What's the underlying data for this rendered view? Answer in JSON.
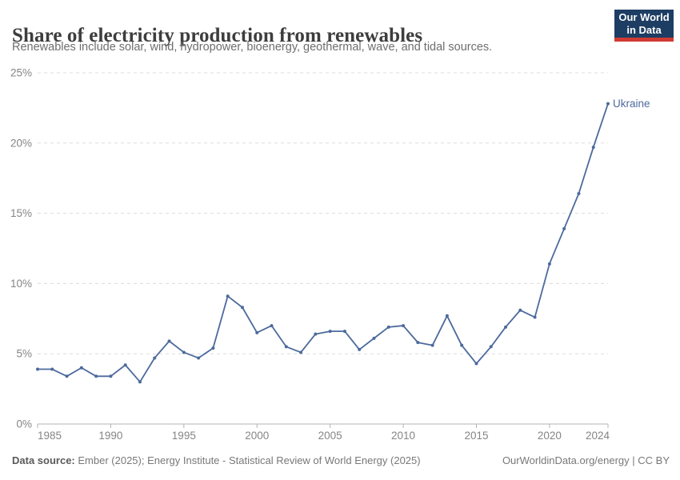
{
  "header": {
    "title": "Share of electricity production from renewables",
    "subtitle": "Renewables include solar, wind, hydropower, bioenergy, geothermal, wave, and tidal sources."
  },
  "logo": {
    "line1": "Our World",
    "line2": "in Data",
    "bg_color": "#1d3d63",
    "accent_color": "#cf3b33"
  },
  "chart_data": {
    "type": "line",
    "title": "Share of electricity production from renewables",
    "xlabel": "",
    "ylabel": "",
    "xlim": [
      1985,
      2024
    ],
    "ylim": [
      0,
      25
    ],
    "grid": "horizontal-dashed",
    "legend_position": "end-of-line-label",
    "x_ticks": [
      1985,
      1990,
      1995,
      2000,
      2005,
      2010,
      2015,
      2020,
      2024
    ],
    "y_ticks": [
      0,
      5,
      10,
      15,
      20,
      25
    ],
    "y_tick_labels": [
      "0%",
      "5%",
      "10%",
      "15%",
      "20%",
      "25%"
    ],
    "series": [
      {
        "name": "Ukraine",
        "color": "#4C6A9C",
        "x": [
          1985,
          1986,
          1987,
          1988,
          1989,
          1990,
          1991,
          1992,
          1993,
          1994,
          1995,
          1996,
          1997,
          1998,
          1999,
          2000,
          2001,
          2002,
          2003,
          2004,
          2005,
          2006,
          2007,
          2008,
          2009,
          2010,
          2011,
          2012,
          2013,
          2014,
          2015,
          2016,
          2017,
          2018,
          2019,
          2020,
          2021,
          2022,
          2023,
          2024
        ],
        "values": [
          3.9,
          3.9,
          3.4,
          4.0,
          3.4,
          3.4,
          4.2,
          3.0,
          4.7,
          5.9,
          5.1,
          4.7,
          5.4,
          9.1,
          8.3,
          6.5,
          7.0,
          5.5,
          5.1,
          6.4,
          6.6,
          6.6,
          5.3,
          6.1,
          6.9,
          7.0,
          5.8,
          5.6,
          7.7,
          5.6,
          4.3,
          5.5,
          6.9,
          8.1,
          7.6,
          11.4,
          13.9,
          16.4,
          19.7,
          22.8
        ]
      }
    ],
    "colors": {
      "line": "#4C6A9C",
      "gridline": "#dcdcdc",
      "axis": "#b3b3b3",
      "tick_label": "#858585"
    }
  },
  "footer": {
    "source_label": "Data source:",
    "source_text": "Ember (2025); Energy Institute - Statistical Review of World Energy (2025)",
    "right_text": "OurWorldinData.org/energy | CC BY"
  }
}
